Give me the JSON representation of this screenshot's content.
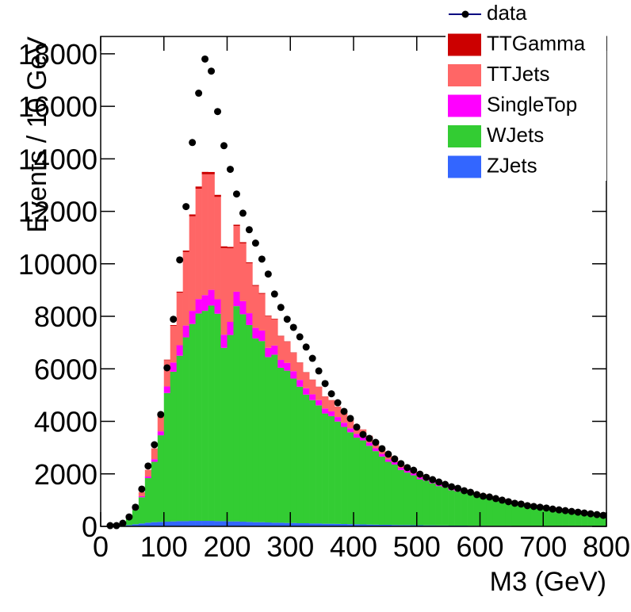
{
  "chart_data": {
    "type": "stacked_histogram",
    "x_label": "M3 (GeV)",
    "y_label": "Events / 10 GeV",
    "bins": [
      0,
      10,
      20,
      30,
      40,
      50,
      60,
      70,
      80,
      90,
      100,
      110,
      120,
      130,
      140,
      150,
      160,
      170,
      180,
      190,
      200,
      210,
      220,
      230,
      240,
      250,
      260,
      270,
      280,
      290,
      300,
      310,
      320,
      330,
      340,
      350,
      360,
      370,
      380,
      390,
      400,
      410,
      420,
      430,
      440,
      450,
      460,
      470,
      480,
      490,
      500,
      510,
      520,
      530,
      540,
      550,
      560,
      570,
      580,
      590,
      600,
      610,
      620,
      630,
      640,
      650,
      660,
      670,
      680,
      690,
      700,
      710,
      720,
      730,
      740,
      750,
      760,
      770,
      780,
      790,
      800
    ],
    "xlim": [
      0,
      800
    ],
    "xticks": [
      0,
      100,
      200,
      300,
      400,
      500,
      600,
      700,
      800
    ],
    "ylim": [
      0,
      18660
    ],
    "yticks": [
      0,
      2000,
      4000,
      6000,
      8000,
      10000,
      12000,
      14000,
      16000,
      18000
    ],
    "series": [
      {
        "name": "ZJets",
        "color": "#3366ff",
        "values": [
          0,
          0,
          5,
          20,
          50,
          80,
          110,
          140,
          160,
          170,
          180,
          190,
          200,
          200,
          210,
          210,
          210,
          210,
          200,
          200,
          190,
          190,
          180,
          170,
          160,
          160,
          150,
          140,
          140,
          130,
          130,
          120,
          120,
          110,
          110,
          100,
          100,
          95,
          90,
          85,
          80,
          75,
          70,
          65,
          60,
          60,
          55,
          50,
          50,
          45,
          45,
          40,
          40,
          35,
          35,
          30,
          30,
          30,
          25,
          25,
          25,
          20,
          20,
          20,
          20,
          15,
          15,
          15,
          15,
          15,
          10,
          10,
          10,
          10,
          10,
          10,
          10,
          10,
          10,
          10
        ]
      },
      {
        "name": "WJets",
        "color": "#33cc33",
        "values": [
          0,
          10,
          30,
          100,
          250,
          550,
          1000,
          1700,
          2300,
          3300,
          4900,
          5700,
          6300,
          7000,
          7500,
          7900,
          8000,
          8200,
          7900,
          6600,
          7100,
          8200,
          7900,
          7500,
          7000,
          6900,
          6300,
          6400,
          5900,
          5800,
          5500,
          5200,
          4900,
          4700,
          4500,
          4200,
          4100,
          3900,
          3700,
          3500,
          3300,
          3200,
          3000,
          2800,
          2600,
          2400,
          2300,
          2100,
          2000,
          1900,
          1750,
          1700,
          1600,
          1500,
          1450,
          1350,
          1300,
          1250,
          1200,
          1150,
          1100,
          1050,
          1000,
          950,
          900,
          860,
          820,
          780,
          750,
          720,
          690,
          660,
          630,
          600,
          570,
          540,
          510,
          480,
          450,
          420
        ]
      },
      {
        "name": "SingleTop",
        "color": "#ff00ff",
        "values": [
          0,
          0,
          0,
          5,
          10,
          20,
          40,
          60,
          100,
          150,
          250,
          350,
          400,
          450,
          500,
          550,
          600,
          600,
          550,
          500,
          500,
          550,
          500,
          450,
          400,
          400,
          350,
          350,
          300,
          300,
          280,
          260,
          240,
          220,
          200,
          190,
          180,
          170,
          160,
          150,
          140,
          130,
          120,
          110,
          100,
          95,
          90,
          85,
          80,
          75,
          70,
          65,
          60,
          55,
          50,
          48,
          45,
          42,
          40,
          38,
          35,
          33,
          30,
          28,
          26,
          24,
          22,
          20,
          19,
          18,
          17,
          16,
          15,
          14,
          13,
          12,
          11,
          10,
          10,
          10
        ]
      },
      {
        "name": "TTJets",
        "color": "#ff6666",
        "values": [
          0,
          0,
          0,
          10,
          30,
          80,
          150,
          250,
          400,
          700,
          1000,
          1400,
          2000,
          2800,
          3600,
          4200,
          4600,
          4400,
          3900,
          3300,
          2800,
          2500,
          2200,
          1900,
          1600,
          1400,
          1200,
          1000,
          900,
          800,
          700,
          650,
          600,
          550,
          500,
          450,
          420,
          390,
          360,
          330,
          300,
          280,
          260,
          240,
          220,
          200,
          190,
          180,
          170,
          160,
          150,
          140,
          130,
          120,
          110,
          100,
          95,
          90,
          85,
          80,
          75,
          70,
          65,
          60,
          55,
          50,
          48,
          46,
          44,
          42,
          40,
          38,
          36,
          34,
          32,
          30,
          28,
          26,
          24,
          22
        ]
      },
      {
        "name": "TTGamma",
        "color": "#cc0000",
        "values": [
          0,
          0,
          0,
          0,
          1,
          2,
          3,
          5,
          8,
          14,
          20,
          28,
          40,
          56,
          72,
          84,
          92,
          88,
          78,
          66,
          56,
          50,
          44,
          38,
          32,
          28,
          24,
          20,
          18,
          16,
          14,
          13,
          12,
          11,
          10,
          9,
          8,
          8,
          7,
          7,
          6,
          6,
          5,
          5,
          4,
          4,
          4,
          4,
          3,
          3,
          3,
          3,
          3,
          2,
          2,
          2,
          2,
          2,
          2,
          2,
          2,
          1,
          1,
          1,
          1,
          1,
          1,
          1,
          1,
          1,
          1,
          1,
          1,
          1,
          1,
          1,
          1,
          1,
          1,
          1
        ]
      }
    ],
    "data": {
      "name": "data",
      "color": "#000000",
      "values": [
        null,
        30,
        30,
        120,
        360,
        730,
        1420,
        2300,
        3110,
        4260,
        6040,
        7890,
        10150,
        12180,
        14620,
        16500,
        17800,
        17340,
        15800,
        14500,
        13600,
        12660,
        11930,
        11300,
        10790,
        10180,
        9610,
        8850,
        8340,
        7890,
        7580,
        7220,
        6830,
        6400,
        5920,
        5440,
        5050,
        4710,
        4380,
        4110,
        3780,
        3500,
        3350,
        3200,
        2960,
        2750,
        2570,
        2390,
        2240,
        2140,
        1990,
        1870,
        1780,
        1690,
        1600,
        1510,
        1450,
        1360,
        1300,
        1210,
        1150,
        1120,
        1060,
        1000,
        940,
        880,
        850,
        790,
        760,
        730,
        700,
        660,
        630,
        600,
        570,
        540,
        510,
        480,
        450,
        420
      ]
    }
  }
}
